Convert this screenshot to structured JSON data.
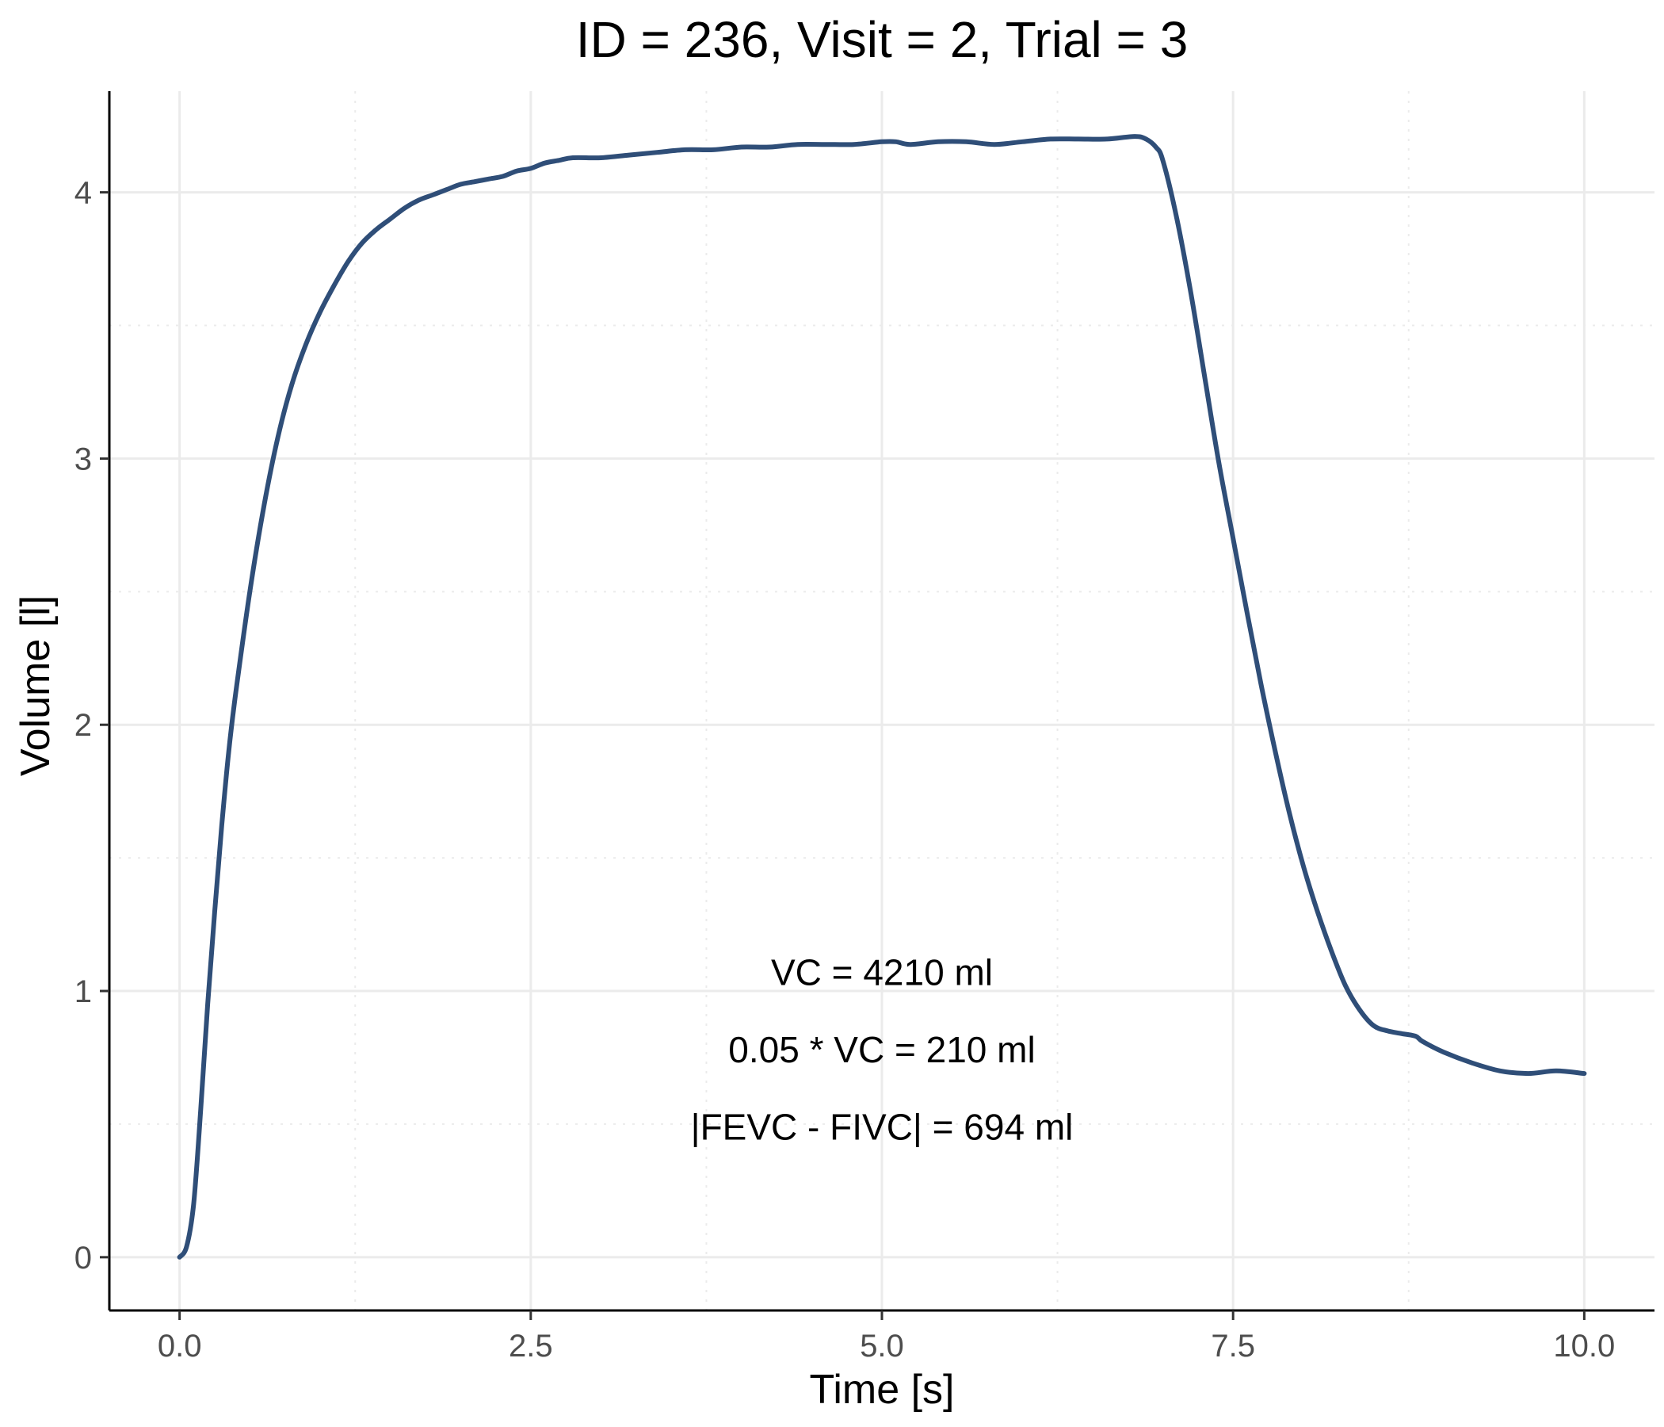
{
  "chart_data": {
    "type": "line",
    "title": "ID = 236, Visit = 2, Trial = 3",
    "xlabel": "Time [s]",
    "ylabel": "Volume [l]",
    "xlim": [
      -0.5,
      10.5
    ],
    "ylim": [
      -0.2,
      4.38
    ],
    "x_ticks": [
      0.0,
      2.5,
      5.0,
      7.5,
      10.0
    ],
    "x_tick_labels": [
      "0.0",
      "2.5",
      "5.0",
      "7.5",
      "10.0"
    ],
    "y_ticks": [
      0,
      1,
      2,
      3,
      4
    ],
    "y_tick_labels": [
      "0",
      "1",
      "2",
      "3",
      "4"
    ],
    "grid": true,
    "legend": "none",
    "colors": {
      "line": "#2f4e78",
      "grid": "#ebebeb",
      "axis": "#000000"
    },
    "annotations": [
      {
        "text": "VC = 4210 ml",
        "x": 5.0,
        "y": 1.07
      },
      {
        "text": "0.05 * VC = 210 ml",
        "x": 5.0,
        "y": 0.78
      },
      {
        "text": "|FEVC - FIVC| = 694 ml",
        "x": 5.0,
        "y": 0.49
      }
    ],
    "series": [
      {
        "x": [
          0.0,
          0.05,
          0.1,
          0.15,
          0.2,
          0.25,
          0.3,
          0.35,
          0.4,
          0.5,
          0.6,
          0.7,
          0.8,
          0.9,
          1.0,
          1.1,
          1.2,
          1.3,
          1.4,
          1.5,
          1.6,
          1.7,
          1.8,
          1.9,
          2.0,
          2.1,
          2.2,
          2.3,
          2.4,
          2.5,
          2.6,
          2.7,
          2.8,
          3.0,
          3.2,
          3.4,
          3.6,
          3.8,
          4.0,
          4.2,
          4.4,
          4.6,
          4.8,
          5.0,
          5.1,
          5.2,
          5.4,
          5.6,
          5.8,
          6.0,
          6.2,
          6.4,
          6.6,
          6.8,
          6.88,
          6.95,
          7.0,
          7.1,
          7.2,
          7.3,
          7.4,
          7.5,
          7.6,
          7.7,
          7.8,
          7.9,
          8.0,
          8.1,
          8.2,
          8.3,
          8.4,
          8.5,
          8.6,
          8.7,
          8.8,
          8.85,
          9.0,
          9.2,
          9.4,
          9.6,
          9.8,
          10.0
        ],
        "y": [
          0.0,
          0.04,
          0.2,
          0.55,
          0.95,
          1.3,
          1.62,
          1.9,
          2.12,
          2.5,
          2.82,
          3.08,
          3.28,
          3.43,
          3.55,
          3.65,
          3.74,
          3.81,
          3.86,
          3.9,
          3.94,
          3.97,
          3.99,
          4.01,
          4.03,
          4.04,
          4.05,
          4.06,
          4.08,
          4.09,
          4.11,
          4.12,
          4.13,
          4.13,
          4.14,
          4.15,
          4.16,
          4.16,
          4.17,
          4.17,
          4.18,
          4.18,
          4.18,
          4.19,
          4.19,
          4.18,
          4.19,
          4.19,
          4.18,
          4.19,
          4.2,
          4.2,
          4.2,
          4.21,
          4.2,
          4.17,
          4.12,
          3.9,
          3.62,
          3.3,
          2.98,
          2.7,
          2.42,
          2.15,
          1.9,
          1.67,
          1.47,
          1.3,
          1.15,
          1.02,
          0.93,
          0.87,
          0.85,
          0.84,
          0.83,
          0.81,
          0.77,
          0.73,
          0.7,
          0.69,
          0.7,
          0.69
        ]
      }
    ]
  }
}
